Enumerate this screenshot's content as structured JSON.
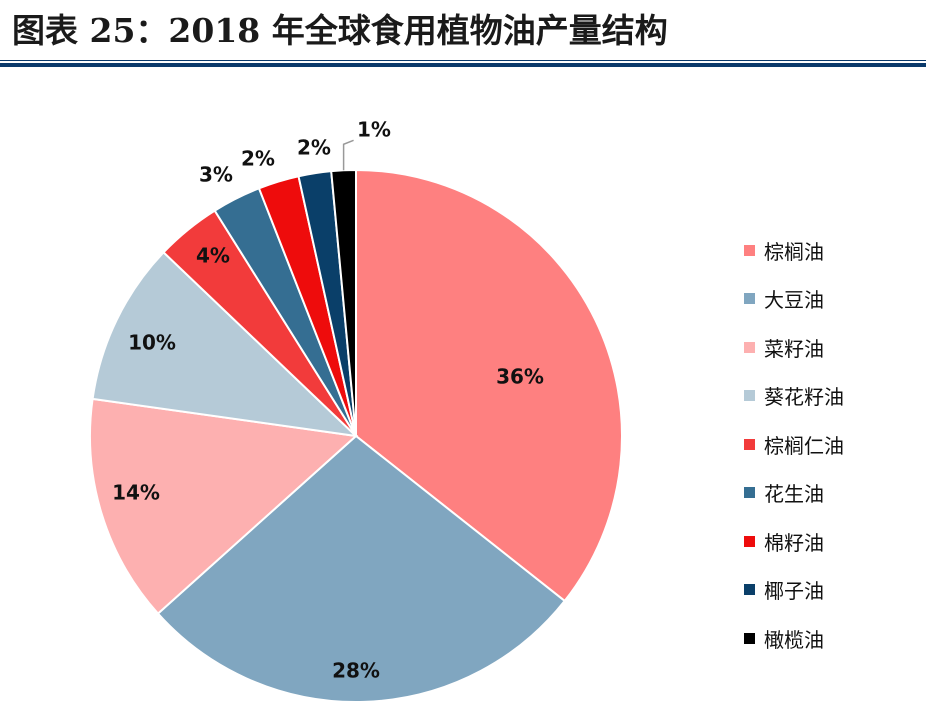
{
  "title": "图表 25：2018 年全球食用植物油产量结构",
  "chart_data": {
    "type": "pie",
    "start_angle_deg": 0,
    "direction": "clockwise",
    "legend_position": "right",
    "slices": [
      {
        "name": "棕榈油",
        "value": 36,
        "label": "36%",
        "color": "#fe8080"
      },
      {
        "name": "大豆油",
        "value": 28,
        "label": "28%",
        "color": "#80a6c0"
      },
      {
        "name": "菜籽油",
        "value": 14,
        "label": "14%",
        "color": "#fdb0b0"
      },
      {
        "name": "葵花籽油",
        "value": 10,
        "label": "10%",
        "color": "#b5cad7"
      },
      {
        "name": "棕榈仁油",
        "value": 4,
        "label": "4%",
        "color": "#f23b3b"
      },
      {
        "name": "花生油",
        "value": 3,
        "label": "3%",
        "color": "#356e92"
      },
      {
        "name": "棉籽油",
        "value": 2.5,
        "label": "2%",
        "color": "#ee0c0c"
      },
      {
        "name": "椰子油",
        "value": 2,
        "label": "2%",
        "color": "#0a3f69"
      },
      {
        "name": "橄榄油",
        "value": 1.5,
        "label": "1%",
        "color": "#000000"
      }
    ]
  }
}
